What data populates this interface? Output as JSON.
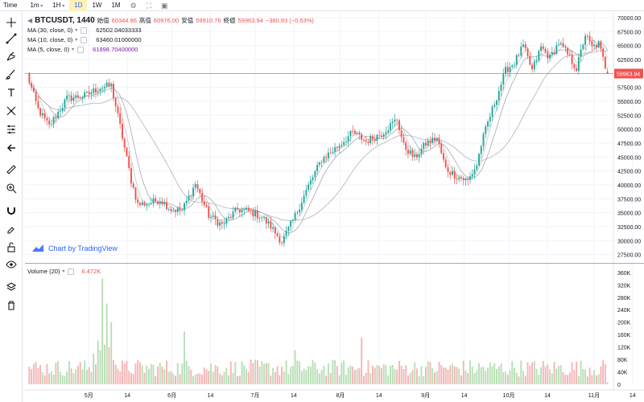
{
  "toolbar": {
    "time_label": "Time",
    "intervals": [
      {
        "label": "1m",
        "dropdown": true,
        "active": false
      },
      {
        "label": "1H",
        "dropdown": true,
        "active": false
      },
      {
        "label": "1D",
        "dropdown": false,
        "active": true
      },
      {
        "label": "1W",
        "dropdown": false,
        "active": false
      },
      {
        "label": "1M",
        "dropdown": false,
        "active": false
      }
    ],
    "icons": [
      "gear-icon",
      "fullscreen-icon",
      "camera-icon"
    ]
  },
  "left_tools": [
    "crosshair-icon",
    "trend-line-icon",
    "pitchfork-icon",
    "brush-icon",
    "text-icon",
    "pattern-icon",
    "measure-icon",
    "back-arrow-icon",
    "ruler-icon",
    "zoom-in-icon",
    "magnet-icon",
    "lock-drawing-icon",
    "unlock-icon",
    "eye-icon",
    "layers-icon",
    "trash-icon"
  ],
  "legend": {
    "symbol": "BTCUSDT, 1440",
    "open_label": "始值",
    "open": "60344.86",
    "high_label": "高值",
    "high": "60976.00",
    "low_label": "安值",
    "low": "59910.76",
    "close_label": "終値",
    "close": "59963.94",
    "change": "−380.93 (−0.63%)",
    "ma30_label": "MA (30, close, 0)",
    "ma30_value": "62502.04033333",
    "ma10_label": "MA (10, close, 0)",
    "ma10_value": "63460.01000000",
    "ma5_label": "MA (5, close, 0)",
    "ma5_value": "61898.70400000",
    "volume_label": "Volume (20)",
    "volume_value": "6.472K"
  },
  "watermark": "Chart by TradingView",
  "colors": {
    "up": "#26a69a",
    "down": "#ef5350",
    "up_soft": "#b9dfb6",
    "down_soft": "#f4b6b6",
    "ma": "#9e9e9e",
    "price_line": "#ef5350",
    "accent": "#2962ff"
  },
  "chart_data": {
    "type": "candlestick",
    "x_tick_labels": [
      "5月",
      "14",
      "6月",
      "14",
      "7月",
      "14",
      "8月",
      "14",
      "9月",
      "14",
      "10月",
      "14",
      "11月",
      "14"
    ],
    "y_tick_labels": [
      "70000.00",
      "67500.00",
      "65000.00",
      "62500.00",
      "60000.00",
      "57500.00",
      "55000.00",
      "52500.00",
      "50000.00",
      "47500.00",
      "45000.00",
      "42500.00",
      "40000.00",
      "37500.00",
      "35000.00",
      "32500.00",
      "30000.00",
      "27500.00"
    ],
    "ylim": [
      26000,
      71000
    ],
    "current_price": "59963.94",
    "volume_ticks": [
      "360K",
      "320K",
      "280K",
      "240K",
      "200K",
      "160K",
      "120K",
      "80K",
      "40K",
      "0"
    ],
    "volume_ylim": [
      0,
      370000
    ],
    "candle_count": 205,
    "series": [
      {
        "name": "BTCUSDT",
        "description": "daily candles",
        "keypoints": [
          [
            0,
            59800
          ],
          [
            5,
            53500
          ],
          [
            10,
            50500
          ],
          [
            18,
            55500
          ],
          [
            26,
            56000
          ],
          [
            33,
            57500
          ],
          [
            38,
            57800
          ],
          [
            42,
            50500
          ],
          [
            47,
            40800
          ],
          [
            50,
            36500
          ],
          [
            55,
            36700
          ],
          [
            60,
            37400
          ],
          [
            65,
            35600
          ],
          [
            70,
            35400
          ],
          [
            76,
            40200
          ],
          [
            82,
            34500
          ],
          [
            88,
            32800
          ],
          [
            95,
            35600
          ],
          [
            100,
            35300
          ],
          [
            106,
            34200
          ],
          [
            110,
            32500
          ],
          [
            115,
            29800
          ],
          [
            120,
            33600
          ],
          [
            127,
            39800
          ],
          [
            133,
            44600
          ],
          [
            140,
            46800
          ],
          [
            147,
            49400
          ],
          [
            153,
            47800
          ],
          [
            160,
            49200
          ],
          [
            167,
            51800
          ],
          [
            170,
            47000
          ],
          [
            175,
            44800
          ],
          [
            180,
            47400
          ],
          [
            185,
            48400
          ],
          [
            189,
            42900
          ],
          [
            194,
            41500
          ],
          [
            199,
            40700
          ],
          [
            203,
            43600
          ],
          [
            205,
            47200
          ],
          [
            208,
            51200
          ],
          [
            212,
            55800
          ],
          [
            216,
            60500
          ],
          [
            220,
            62000
          ],
          [
            224,
            64900
          ],
          [
            228,
            60500
          ],
          [
            232,
            64700
          ],
          [
            236,
            62800
          ],
          [
            240,
            65500
          ],
          [
            244,
            63400
          ],
          [
            248,
            60800
          ],
          [
            252,
            67000
          ],
          [
            255,
            64600
          ],
          [
            258,
            65300
          ],
          [
            262,
            59900
          ]
        ]
      }
    ],
    "moving_averages": [
      {
        "name": "MA (30, close, 0)",
        "value": "62502.04033333"
      },
      {
        "name": "MA (10, close, 0)",
        "value": "63460.01000000"
      },
      {
        "name": "MA (5, close, 0)",
        "value": "61898.70400000"
      }
    ],
    "volume": {
      "name": "Volume (20)",
      "last": "6.472K",
      "description": "daily volume bars, mostly 20K–80K with spikes up to ~340K near May 10"
    }
  }
}
